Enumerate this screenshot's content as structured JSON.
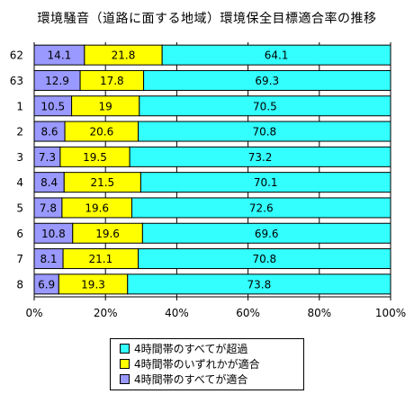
{
  "chart_data": {
    "type": "bar",
    "orientation": "horizontal",
    "stacked": "percent",
    "title": "環境騒音（道路に面する地域）環境保全目標適合率の推移",
    "categories": [
      "62",
      "63",
      "1",
      "2",
      "3",
      "4",
      "5",
      "6",
      "7",
      "8"
    ],
    "series": [
      {
        "name": "4時間帯のすべてが適合",
        "color": "#9999ff",
        "values": [
          14.1,
          12.9,
          10.5,
          8.6,
          7.3,
          8.4,
          7.8,
          10.8,
          8.1,
          6.9
        ]
      },
      {
        "name": "4時間帯のいずれかが適合",
        "color": "#ffff00",
        "values": [
          21.8,
          17.8,
          19,
          20.6,
          19.5,
          21.5,
          19.6,
          19.6,
          21.1,
          19.3
        ]
      },
      {
        "name": "4時間帯のすべてが超過",
        "color": "#33ffff",
        "values": [
          64.1,
          69.3,
          70.5,
          70.8,
          73.2,
          70.1,
          72.6,
          69.6,
          70.8,
          73.8
        ]
      }
    ],
    "xlim": [
      0,
      100
    ],
    "x_ticks": [
      "0%",
      "20%",
      "40%",
      "60%",
      "80%",
      "100%"
    ],
    "legend_position": "bottom",
    "legend_order": [
      "4時間帯のすべてが超過",
      "4時間帯のいずれかが適合",
      "4時間帯のすべてが適合"
    ]
  }
}
